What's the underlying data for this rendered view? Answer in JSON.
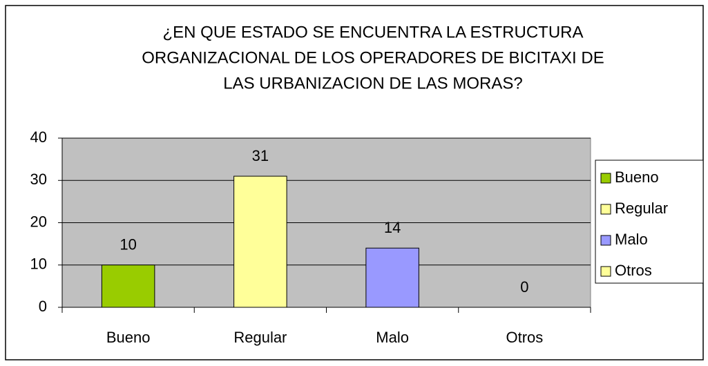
{
  "chart_data": {
    "type": "bar",
    "title": [
      "¿EN QUE ESTADO SE ENCUENTRA LA ESTRUCTURA",
      "ORGANIZACIONAL DE LOS OPERADORES DE BICITAXI DE",
      "LAS URBANIZACION DE LAS MORAS?"
    ],
    "categories": [
      "Bueno",
      "Regular",
      "Malo",
      "Otros"
    ],
    "values": [
      10,
      31,
      14,
      0
    ],
    "colors": [
      "#99cc00",
      "#ffff99",
      "#9999ff",
      "#ffff99"
    ],
    "ylim": [
      0,
      40
    ],
    "yticks": [
      0,
      10,
      20,
      30,
      40
    ],
    "grid": true,
    "legend": "right"
  }
}
